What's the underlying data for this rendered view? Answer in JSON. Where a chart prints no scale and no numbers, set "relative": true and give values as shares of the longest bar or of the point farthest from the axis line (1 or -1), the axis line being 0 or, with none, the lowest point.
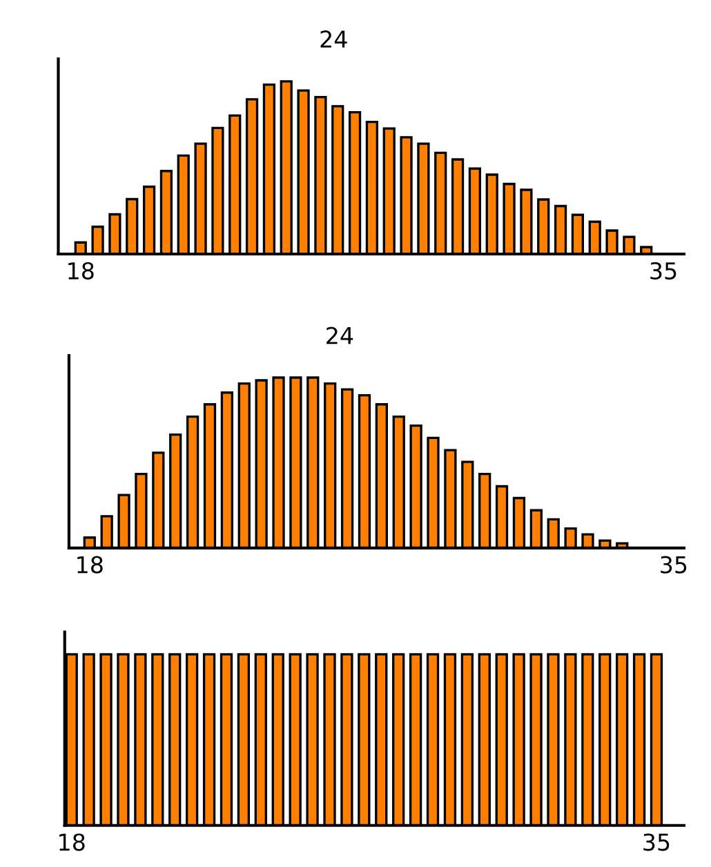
{
  "chart_data": [
    {
      "type": "bar",
      "title": "24",
      "relative": true,
      "color": "#ff8000",
      "xlim": [
        17.35,
        35.6
      ],
      "xticks": [
        18,
        35
      ],
      "x": [
        18,
        18.5,
        19,
        19.5,
        20,
        20.5,
        21,
        21.5,
        22,
        22.5,
        23,
        23.5,
        24,
        24.5,
        25,
        25.5,
        26,
        26.5,
        27,
        27.5,
        28,
        28.5,
        29,
        29.5,
        30,
        30.5,
        31,
        31.5,
        32,
        32.5,
        33,
        33.5,
        34,
        34.5
      ],
      "values": [
        0.067,
        0.158,
        0.23,
        0.318,
        0.39,
        0.481,
        0.57,
        0.639,
        0.73,
        0.802,
        0.896,
        0.981,
        1,
        0.947,
        0.909,
        0.856,
        0.821,
        0.765,
        0.727,
        0.676,
        0.639,
        0.586,
        0.548,
        0.495,
        0.46,
        0.406,
        0.372,
        0.316,
        0.278,
        0.227,
        0.187,
        0.136,
        0.099,
        0.04
      ]
    },
    {
      "type": "bar",
      "title": "24",
      "relative": true,
      "color": "#ff8000",
      "xlim": [
        17.4,
        35.3
      ],
      "xticks": [
        18,
        35
      ],
      "x": [
        18,
        18.5,
        19,
        19.5,
        20,
        20.5,
        21,
        21.5,
        22,
        22.5,
        23,
        23.5,
        24,
        24.5,
        25,
        25.5,
        26,
        26.5,
        27,
        27.5,
        28,
        28.5,
        29,
        29.5,
        30,
        30.5,
        31,
        31.5,
        32,
        32.5,
        33,
        33.5
      ],
      "values": [
        0.061,
        0.186,
        0.311,
        0.434,
        0.559,
        0.665,
        0.771,
        0.843,
        0.912,
        0.965,
        0.984,
        1,
        1,
        1,
        0.965,
        0.931,
        0.896,
        0.843,
        0.771,
        0.718,
        0.646,
        0.574,
        0.505,
        0.434,
        0.362,
        0.293,
        0.221,
        0.168,
        0.114,
        0.08,
        0.043,
        0.027
      ]
    },
    {
      "type": "bar",
      "relative": true,
      "color": "#ff8000",
      "xlim": [
        17.8,
        35.8
      ],
      "xticks": [
        18,
        35
      ],
      "x": [
        18,
        18.5,
        19,
        19.5,
        20,
        20.5,
        21,
        21.5,
        22,
        22.5,
        23,
        23.5,
        24,
        24.5,
        25,
        25.5,
        26,
        26.5,
        27,
        27.5,
        28,
        28.5,
        29,
        29.5,
        30,
        30.5,
        31,
        31.5,
        32,
        32.5,
        33,
        33.5,
        34,
        34.5,
        35
      ],
      "values": [
        1,
        1,
        1,
        1,
        1,
        1,
        1,
        1,
        1,
        1,
        1,
        1,
        1,
        1,
        1,
        1,
        1,
        1,
        1,
        1,
        1,
        1,
        1,
        1,
        1,
        1,
        1,
        1,
        1,
        1,
        1,
        1,
        1,
        1,
        1
      ]
    }
  ]
}
